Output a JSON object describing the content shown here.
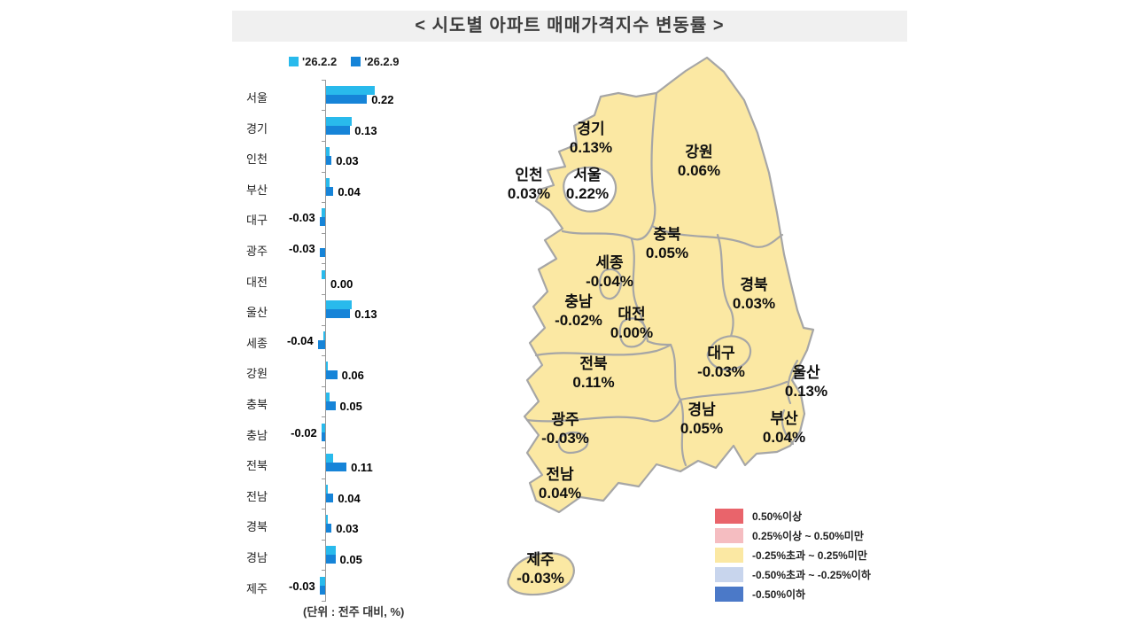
{
  "title": "< 시도별 아파트 매매가격지수 변동률 >",
  "bar_chart": {
    "legend": [
      {
        "label": "'26.2.2",
        "color": "#29BAEC"
      },
      {
        "label": "'26.2.9",
        "color": "#1684D8"
      }
    ],
    "categories": [
      "서울",
      "경기",
      "인천",
      "부산",
      "대구",
      "광주",
      "대전",
      "울산",
      "세종",
      "강원",
      "충북",
      "충남",
      "전북",
      "전남",
      "경북",
      "경남",
      "제주"
    ],
    "series_prev": [
      0.26,
      0.14,
      0.02,
      0.02,
      -0.02,
      0.0,
      -0.02,
      0.14,
      -0.01,
      0.01,
      0.02,
      -0.02,
      0.04,
      0.01,
      0.01,
      0.05,
      -0.03
    ],
    "series_curr": [
      0.22,
      0.13,
      0.03,
      0.04,
      -0.03,
      -0.03,
      0.0,
      0.13,
      -0.04,
      0.06,
      0.05,
      -0.02,
      0.11,
      0.04,
      0.03,
      0.05,
      -0.03
    ],
    "value_labels": [
      "0.22",
      "0.13",
      "0.03",
      "0.04",
      "-0.03",
      "-0.03",
      "0.00",
      "0.13",
      "-0.04",
      "0.06",
      "0.05",
      "-0.02",
      "0.11",
      "0.04",
      "0.03",
      "0.05",
      "-0.03"
    ],
    "unit_note": "(단위 : 전주 대비, %)",
    "axis_color": "#9a9a9a"
  },
  "map": {
    "fill_color": "#FBE8A3",
    "border_color": "#A6A6A6",
    "seoul_fill": "#FFFFFF",
    "regions": [
      {
        "name": "경기",
        "value": "0.13%"
      },
      {
        "name": "서울",
        "value": "0.22%"
      },
      {
        "name": "인천",
        "value": "0.03%"
      },
      {
        "name": "강원",
        "value": "0.06%"
      },
      {
        "name": "충북",
        "value": "0.05%"
      },
      {
        "name": "세종",
        "value": "-0.04%"
      },
      {
        "name": "충남",
        "value": "-0.02%"
      },
      {
        "name": "대전",
        "value": "0.00%"
      },
      {
        "name": "경북",
        "value": "0.03%"
      },
      {
        "name": "대구",
        "value": "-0.03%"
      },
      {
        "name": "울산",
        "value": "0.13%"
      },
      {
        "name": "전북",
        "value": "0.11%"
      },
      {
        "name": "광주",
        "value": "-0.03%"
      },
      {
        "name": "경남",
        "value": "0.05%"
      },
      {
        "name": "부산",
        "value": "0.04%"
      },
      {
        "name": "전남",
        "value": "0.04%"
      },
      {
        "name": "제주",
        "value": "-0.03%"
      }
    ],
    "legend": [
      {
        "color": "#E9646B",
        "label": "0.50%이상"
      },
      {
        "color": "#F5BDC1",
        "label": "0.25%이상 ~ 0.50%미만"
      },
      {
        "color": "#FBE8A3",
        "label": "-0.25%초과 ~ 0.25%미만"
      },
      {
        "color": "#C8D5ED",
        "label": "-0.50%초과 ~ -0.25%이하"
      },
      {
        "color": "#4B79C8",
        "label": "-0.50%이하"
      }
    ]
  },
  "chart_data": [
    {
      "type": "bar",
      "orientation": "horizontal",
      "title": "< 시도별 아파트 매매가격지수 변동률 >",
      "unit": "전주 대비, %",
      "categories": [
        "서울",
        "경기",
        "인천",
        "부산",
        "대구",
        "광주",
        "대전",
        "울산",
        "세종",
        "강원",
        "충북",
        "충남",
        "전북",
        "전남",
        "경북",
        "경남",
        "제주"
      ],
      "series": [
        {
          "name": "'26.2.2",
          "color": "#29BAEC",
          "values": [
            0.26,
            0.14,
            0.02,
            0.02,
            -0.02,
            0.0,
            -0.02,
            0.14,
            -0.01,
            0.01,
            0.02,
            -0.02,
            0.04,
            0.01,
            0.01,
            0.05,
            -0.03
          ]
        },
        {
          "name": "'26.2.9",
          "color": "#1684D8",
          "values": [
            0.22,
            0.13,
            0.03,
            0.04,
            -0.03,
            -0.03,
            0.0,
            0.13,
            -0.04,
            0.06,
            0.05,
            -0.02,
            0.11,
            0.04,
            0.03,
            0.05,
            -0.03
          ]
        }
      ],
      "value_labels_series": "'26.2.9",
      "xlim": [
        -0.1,
        0.3
      ],
      "grid": false,
      "legend_position": "top"
    },
    {
      "type": "heatmap",
      "subtype": "choropleth-map-south-korea",
      "metric": "아파트 매매가격지수 변동률 ('26.2.9, %)",
      "regions": [
        "경기",
        "서울",
        "인천",
        "강원",
        "충북",
        "세종",
        "충남",
        "대전",
        "경북",
        "대구",
        "울산",
        "전북",
        "광주",
        "경남",
        "부산",
        "전남",
        "제주"
      ],
      "values": [
        0.13,
        0.22,
        0.03,
        0.06,
        0.05,
        -0.04,
        -0.02,
        0.0,
        0.03,
        -0.03,
        0.13,
        0.11,
        -0.03,
        0.05,
        0.04,
        0.04,
        -0.03
      ],
      "bins": [
        {
          "label": "0.50%이상",
          "color": "#E9646B"
        },
        {
          "label": "0.25%이상 ~ 0.50%미만",
          "color": "#F5BDC1"
        },
        {
          "label": "-0.25%초과 ~ 0.25%미만",
          "color": "#FBE8A3"
        },
        {
          "label": "-0.50%초과 ~ -0.25%이하",
          "color": "#C8D5ED"
        },
        {
          "label": "-0.50%이하",
          "color": "#4B79C8"
        }
      ],
      "legend_position": "bottom-right"
    }
  ]
}
